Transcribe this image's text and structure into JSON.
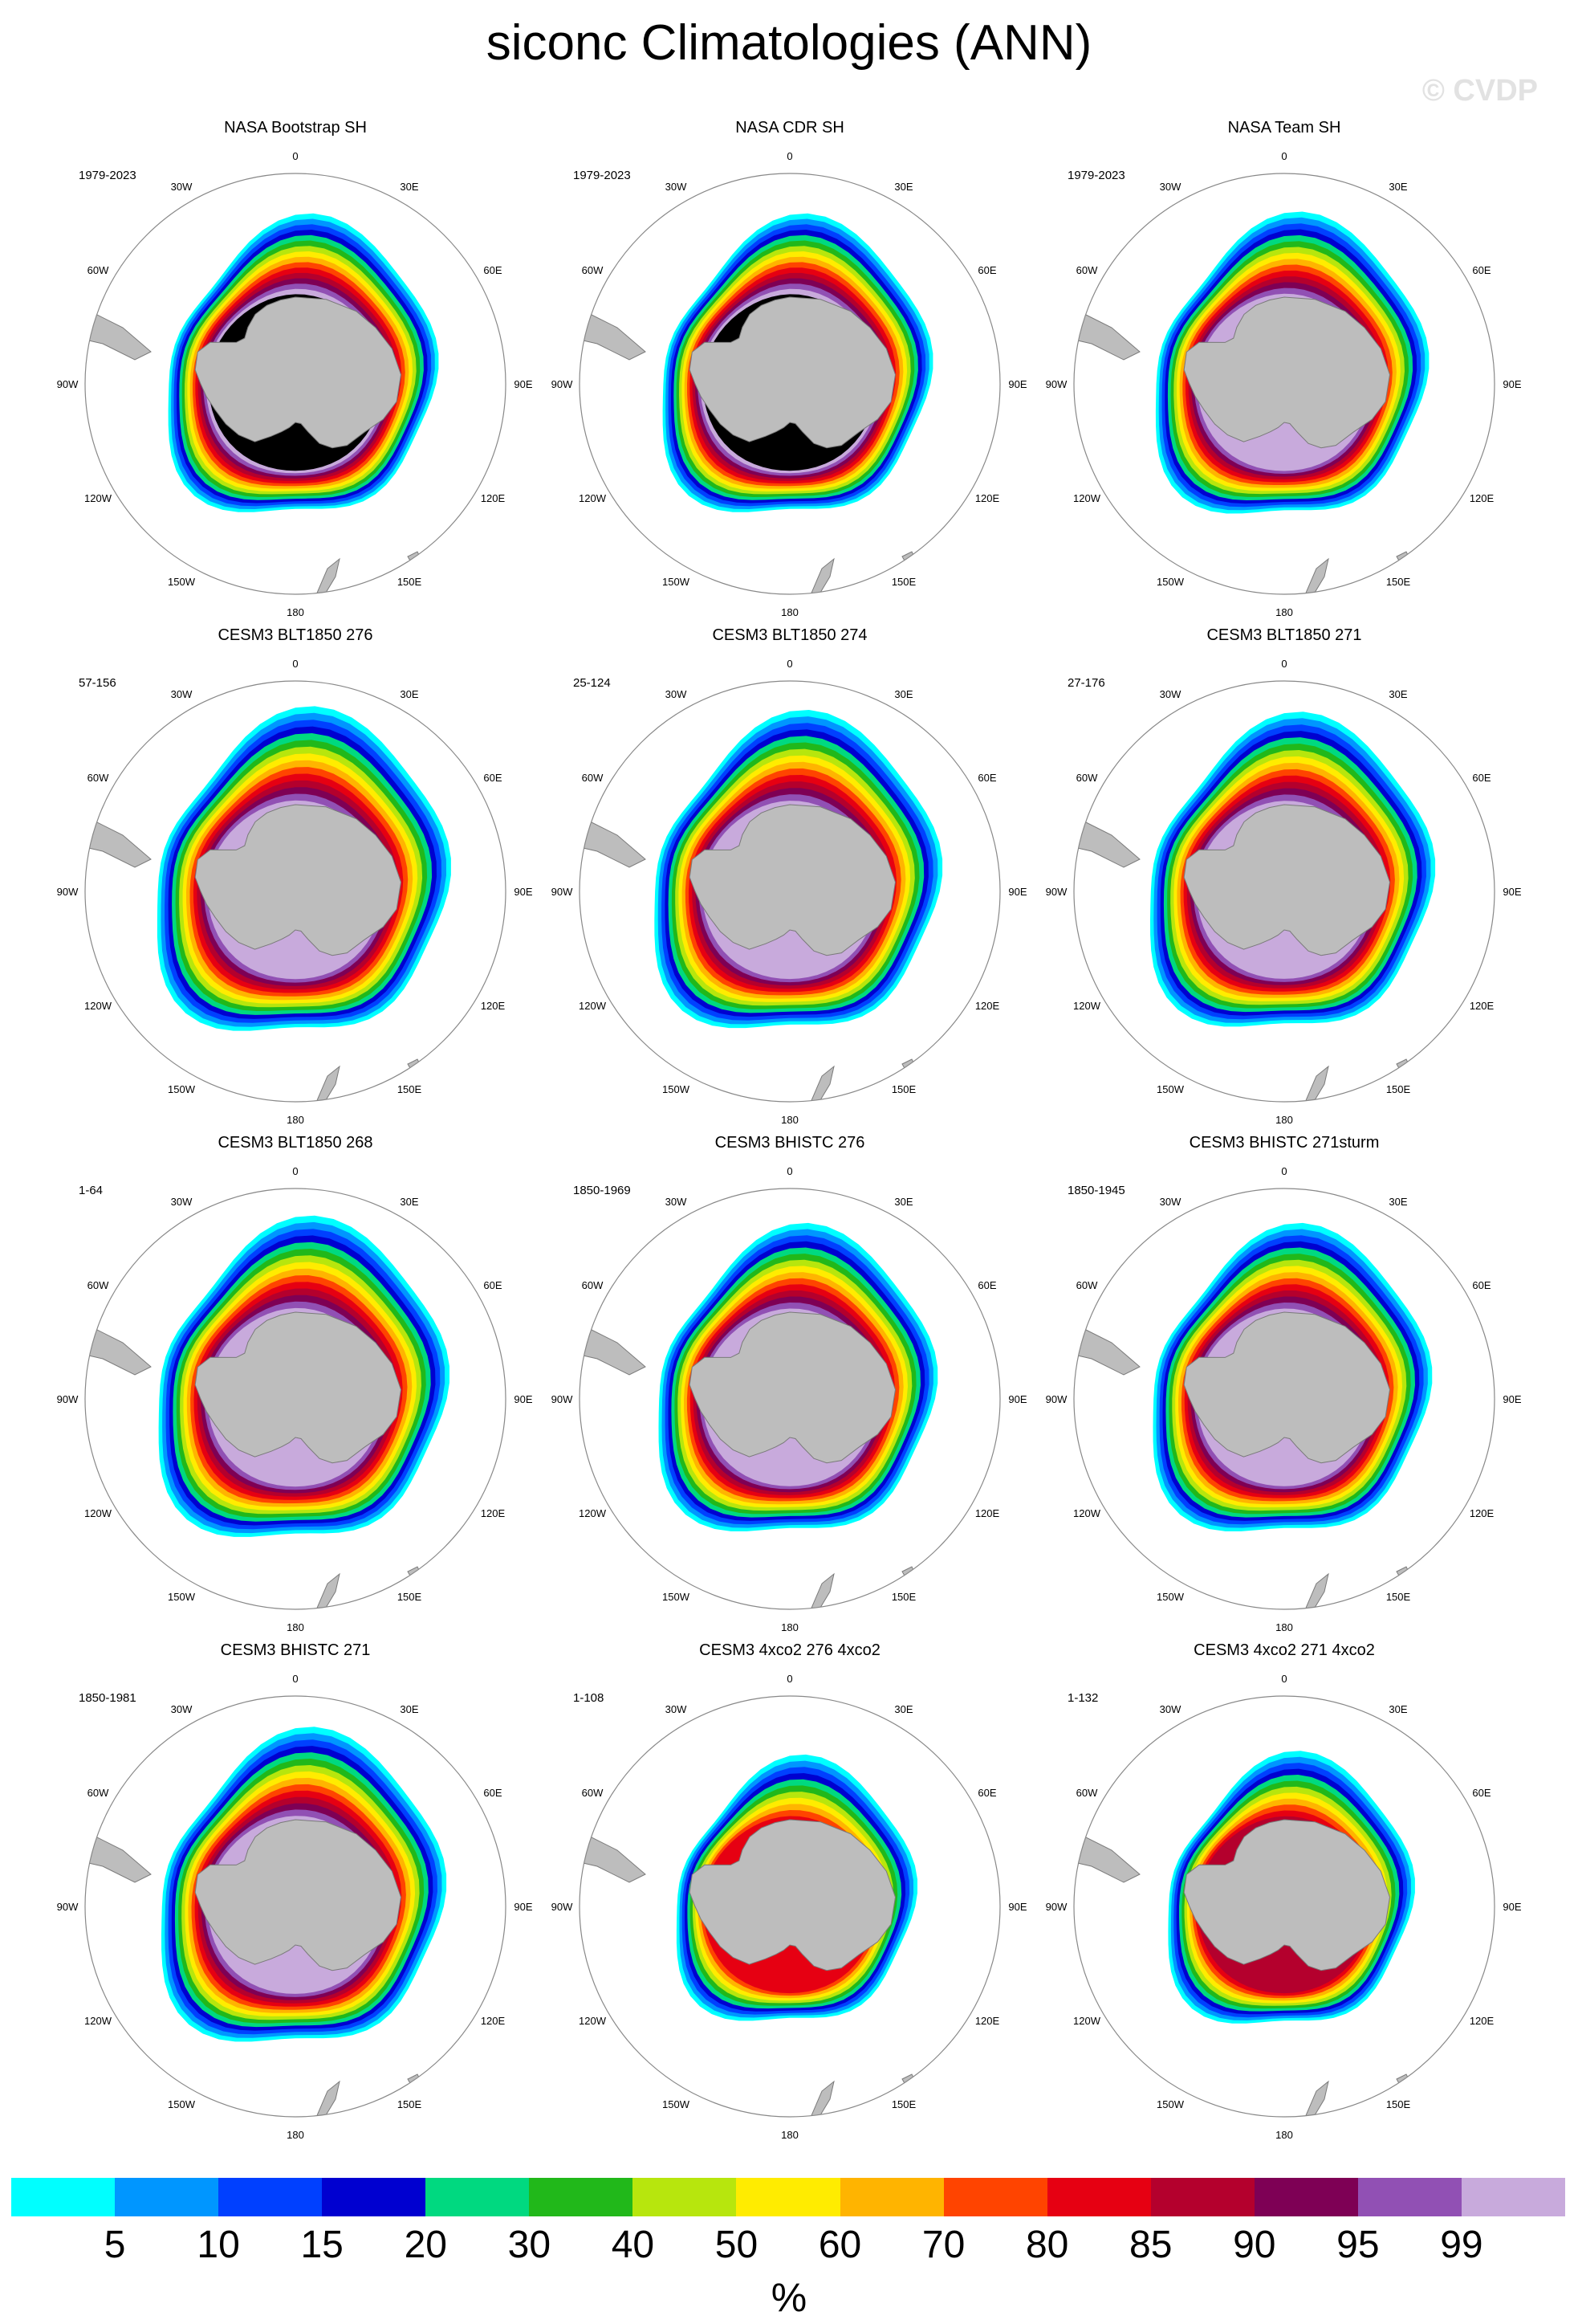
{
  "figure": {
    "title": "siconc Climatologies (ANN)",
    "watermark": "© CVDP",
    "units": "%"
  },
  "chart_data": {
    "type": "heatmap",
    "projection": "south-polar-stereographic",
    "longitude_labels": [
      "0",
      "30E",
      "60E",
      "90E",
      "120E",
      "150E",
      "180",
      "150W",
      "120W",
      "90W",
      "60W",
      "30W"
    ],
    "panels": [
      {
        "title": "NASA Bootstrap SH",
        "years": "1979-2023",
        "extent_scale": 0.92,
        "peak_band": 15
      },
      {
        "title": "NASA CDR SH",
        "years": "1979-2023",
        "extent_scale": 0.92,
        "peak_band": 15
      },
      {
        "title": "NASA Team SH",
        "years": "1979-2023",
        "extent_scale": 0.93,
        "peak_band": 14
      },
      {
        "title": "CESM3 BLT1850 276",
        "years": "57-156",
        "extent_scale": 1.0,
        "peak_band": 14
      },
      {
        "title": "CESM3 BLT1850 274",
        "years": "25-124",
        "extent_scale": 0.98,
        "peak_band": 14
      },
      {
        "title": "CESM3 BLT1850 271",
        "years": "27-176",
        "extent_scale": 0.97,
        "peak_band": 14
      },
      {
        "title": "CESM3 BLT1850 268",
        "years": "1-64",
        "extent_scale": 0.99,
        "peak_band": 14
      },
      {
        "title": "CESM3 BHISTC 276",
        "years": "1850-1969",
        "extent_scale": 0.95,
        "peak_band": 14
      },
      {
        "title": "CESM3 BHISTC 271sturm",
        "years": "1850-1945",
        "extent_scale": 0.95,
        "peak_band": 14
      },
      {
        "title": "CESM3 BHISTC 271",
        "years": "1850-1981",
        "extent_scale": 0.97,
        "peak_band": 14
      },
      {
        "title": "CESM3 4xco2 276 4xco2",
        "years": "1-108",
        "extent_scale": 0.82,
        "peak_band": 10
      },
      {
        "title": "CESM3 4xco2 271 4xco2",
        "years": "1-132",
        "extent_scale": 0.84,
        "peak_band": 11
      }
    ],
    "colorbar": {
      "levels": [
        "5",
        "10",
        "15",
        "20",
        "30",
        "40",
        "50",
        "60",
        "70",
        "80",
        "85",
        "90",
        "95",
        "99"
      ],
      "colors": [
        "#00ffff",
        "#0096ff",
        "#0040ff",
        "#0000d0",
        "#00d980",
        "#21b81a",
        "#b7e60d",
        "#ffec00",
        "#ffb400",
        "#ff4400",
        "#e60012",
        "#b4002d",
        "#7e0055",
        "#9150b4",
        "#c8aadc"
      ]
    }
  }
}
